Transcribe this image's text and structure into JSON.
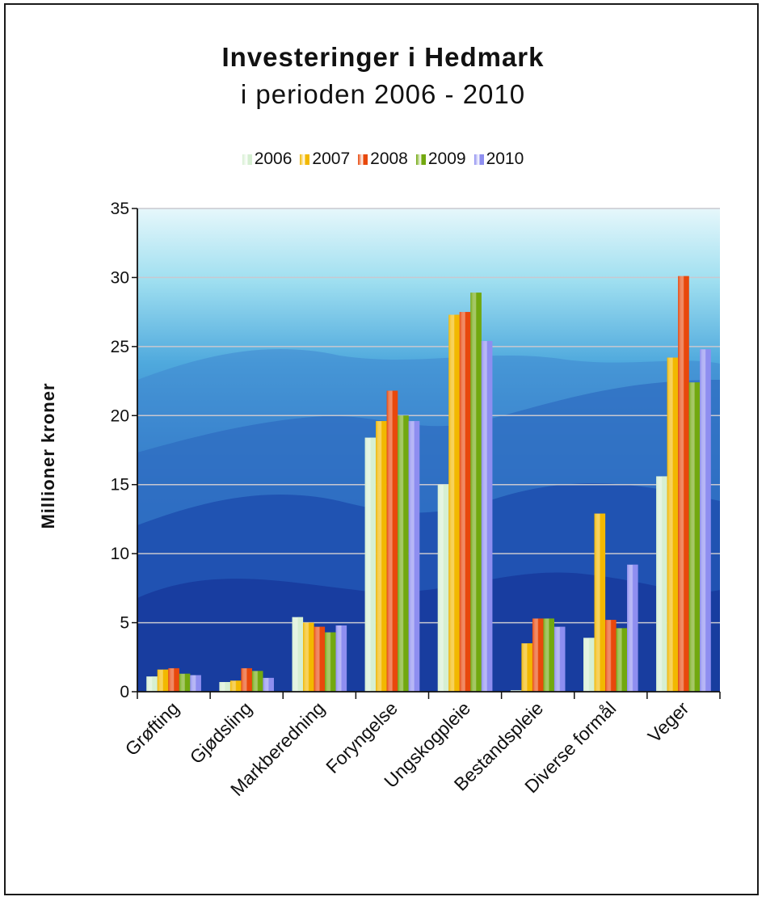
{
  "chart_data": {
    "type": "bar",
    "title": "Investeringer i Hedmark",
    "subtitle": "i perioden 2006 - 2010",
    "xlabel": "",
    "ylabel": "Millioner  kroner",
    "ylim": [
      0,
      35
    ],
    "yticks": [
      "0",
      "5",
      "10",
      "15",
      "20",
      "25",
      "30",
      "35"
    ],
    "grid": true,
    "legend_position": "top",
    "categories": [
      "Grøfting",
      "Gjødsling",
      "Markberedning",
      "Foryngelse",
      "Ungskogpleie",
      "Bestandspleie",
      "Diverse formål",
      "Veger"
    ],
    "series": [
      {
        "name": "2006",
        "color": "#d6efd2",
        "values": [
          1.1,
          0.7,
          5.4,
          18.4,
          15.0,
          0.1,
          3.9,
          15.6
        ]
      },
      {
        "name": "2007",
        "color": "#f2b800",
        "values": [
          1.6,
          0.8,
          5.0,
          19.6,
          27.3,
          3.5,
          12.9,
          24.2
        ]
      },
      {
        "name": "2008",
        "color": "#e8480c",
        "values": [
          1.7,
          1.7,
          4.7,
          21.8,
          27.5,
          5.3,
          5.2,
          30.1
        ]
      },
      {
        "name": "2009",
        "color": "#72a80f",
        "values": [
          1.3,
          1.5,
          4.3,
          20.0,
          28.9,
          5.3,
          4.6,
          22.4
        ]
      },
      {
        "name": "2010",
        "color": "#8e8ef0",
        "values": [
          1.2,
          1.0,
          4.8,
          19.6,
          25.4,
          4.7,
          9.2,
          24.8
        ]
      }
    ]
  }
}
